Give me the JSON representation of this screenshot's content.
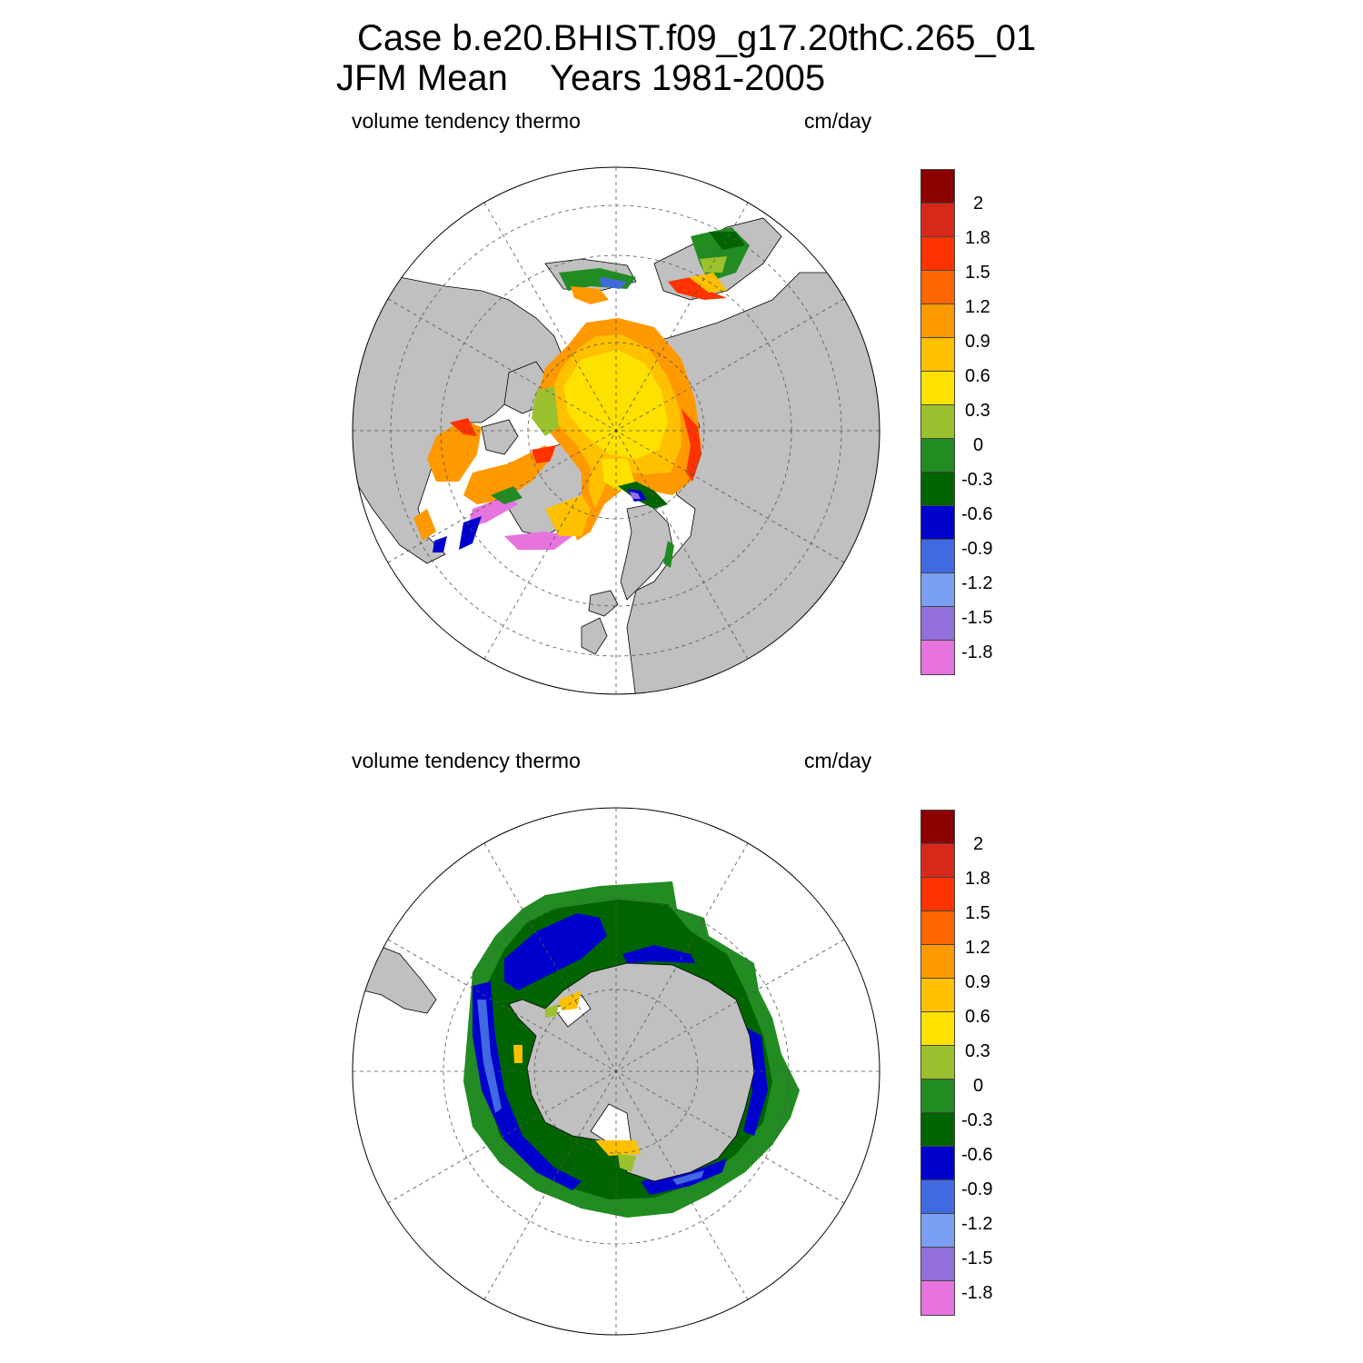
{
  "title": {
    "case": "Case b.e20.BHIST.f09_g17.20thC.265_01",
    "season": "JFM Mean",
    "years": "Years 1981-2005"
  },
  "panels": [
    {
      "id": "arctic",
      "left_label": "volume tendency thermo",
      "right_label": "cm/day"
    },
    {
      "id": "antarctic",
      "left_label": "volume tendency thermo",
      "right_label": "cm/day"
    }
  ],
  "colorbar": {
    "colors": [
      "#8b0000",
      "#d7291a",
      "#ff3300",
      "#ff6600",
      "#ff9900",
      "#ffc000",
      "#ffe100",
      "#9bc12e",
      "#228b22",
      "#006400",
      "#0000cd",
      "#4169e1",
      "#7b9ff2",
      "#9370db",
      "#e673de"
    ],
    "labels": [
      "2",
      "1.8",
      "1.5",
      "1.2",
      "0.9",
      "0.6",
      "0.3",
      "0",
      "-0.3",
      "-0.6",
      "-0.9",
      "-1.2",
      "-1.5",
      "-1.8"
    ]
  },
  "colors": {
    "land": "#c0c0c0",
    "background": "#ffffff",
    "grid": "#555555"
  }
}
